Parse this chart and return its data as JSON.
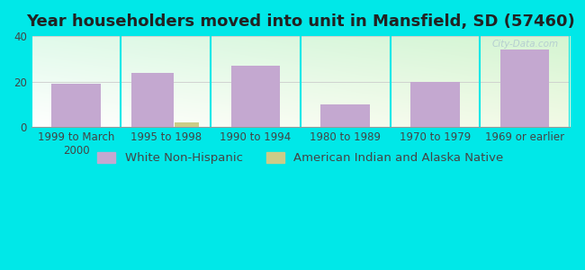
{
  "title": "Year householders moved into unit in Mansfield, SD (57460)",
  "categories": [
    "1999 to March\n2000",
    "1995 to 1998",
    "1990 to 1994",
    "1980 to 1989",
    "1970 to 1979",
    "1969 or earlier"
  ],
  "white_values": [
    19,
    24,
    27,
    10,
    20,
    34
  ],
  "native_values": [
    0,
    2,
    0,
    0,
    0,
    0
  ],
  "white_color": "#c4a8d0",
  "native_color": "#cccc88",
  "background_outer": "#00e8e8",
  "ylim": [
    0,
    40
  ],
  "yticks": [
    0,
    20,
    40
  ],
  "bar_width": 0.55,
  "title_fontsize": 13,
  "legend_fontsize": 9.5,
  "tick_fontsize": 8.5,
  "watermark_text": "City-Data.com",
  "legend_white_label": "White Non-Hispanic",
  "legend_native_label": "American Indian and Alaska Native"
}
